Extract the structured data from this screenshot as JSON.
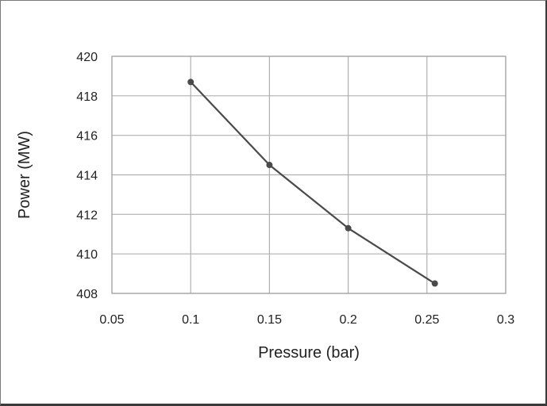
{
  "chart_data": {
    "type": "line",
    "title": "",
    "xlabel": "Pressure (bar)",
    "ylabel": "Power (MW)",
    "xlim": [
      0.05,
      0.3
    ],
    "ylim": [
      408,
      420
    ],
    "xticks": [
      "0.05",
      "0.1",
      "0.15",
      "0.2",
      "0.25",
      "0.3"
    ],
    "yticks": [
      "408",
      "410",
      "412",
      "414",
      "416",
      "418",
      "420"
    ],
    "grid": true,
    "legend": "none",
    "colors": {
      "line": "#4a4a4a",
      "marker": "#4a4a4a",
      "grid": "#b0b0b0",
      "plot_border": "#a0a0a0"
    },
    "series": [
      {
        "x": [
          0.1,
          0.15,
          0.2,
          0.255
        ],
        "y": [
          418.7,
          414.5,
          411.3,
          408.5
        ]
      }
    ]
  }
}
